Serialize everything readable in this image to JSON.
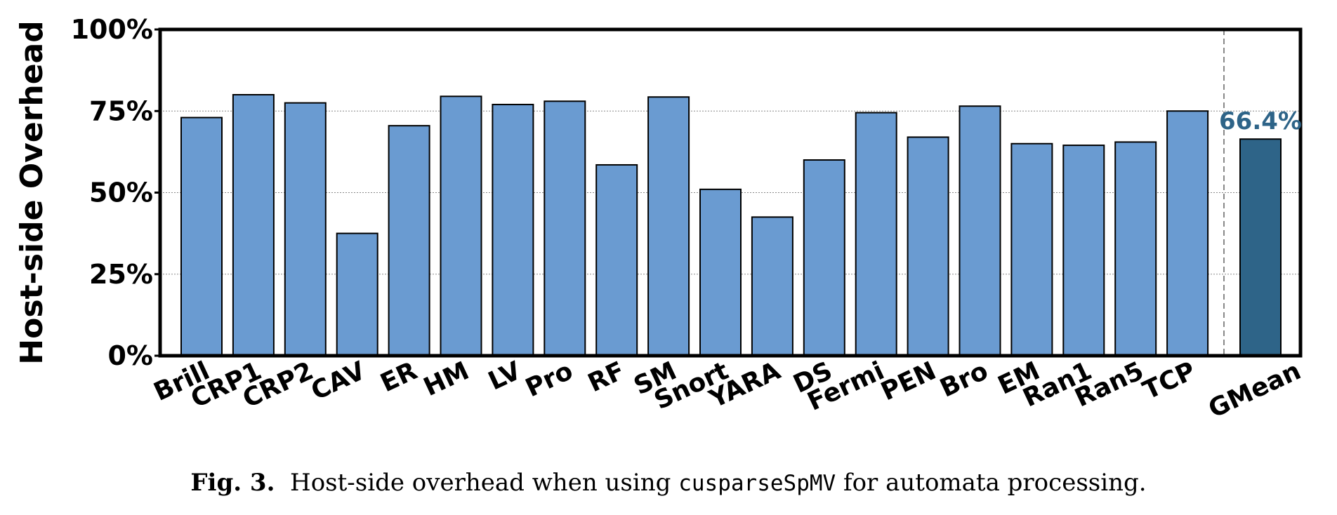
{
  "chart_data": {
    "type": "bar",
    "ylabel": "Host-side Overhead",
    "ylim": [
      0,
      100
    ],
    "yticks": [
      0,
      25,
      50,
      75,
      100
    ],
    "ytick_labels": [
      "0%",
      "25%",
      "50%",
      "75%",
      "100%"
    ],
    "grid": "horizontal dotted",
    "categories": [
      "Brill",
      "CRP1",
      "CRP2",
      "CAV",
      "ER",
      "HM",
      "LV",
      "Pro",
      "RF",
      "SM",
      "Snort",
      "YARA",
      "DS",
      "Fermi",
      "PEN",
      "Bro",
      "EM",
      "Ran1",
      "Ran5",
      "TCP"
    ],
    "values": [
      73,
      80,
      77.5,
      37.5,
      70.5,
      79.5,
      77,
      78,
      58.5,
      79.3,
      51,
      42.5,
      60,
      74.5,
      67,
      76.5,
      65,
      64.5,
      65.5,
      75
    ],
    "summary": {
      "category": "GMean",
      "value": 66.4,
      "label": "66.4%"
    },
    "colors": {
      "bars": "#6a9bd1",
      "summary": "#2e6488",
      "summary_label": "#2e6488",
      "edge": "#000000"
    }
  },
  "caption": {
    "fig_label": "Fig. 3.",
    "text_before": "Host-side overhead when using ",
    "code": "cusparseSpMV",
    "text_after": " for automata processing."
  }
}
